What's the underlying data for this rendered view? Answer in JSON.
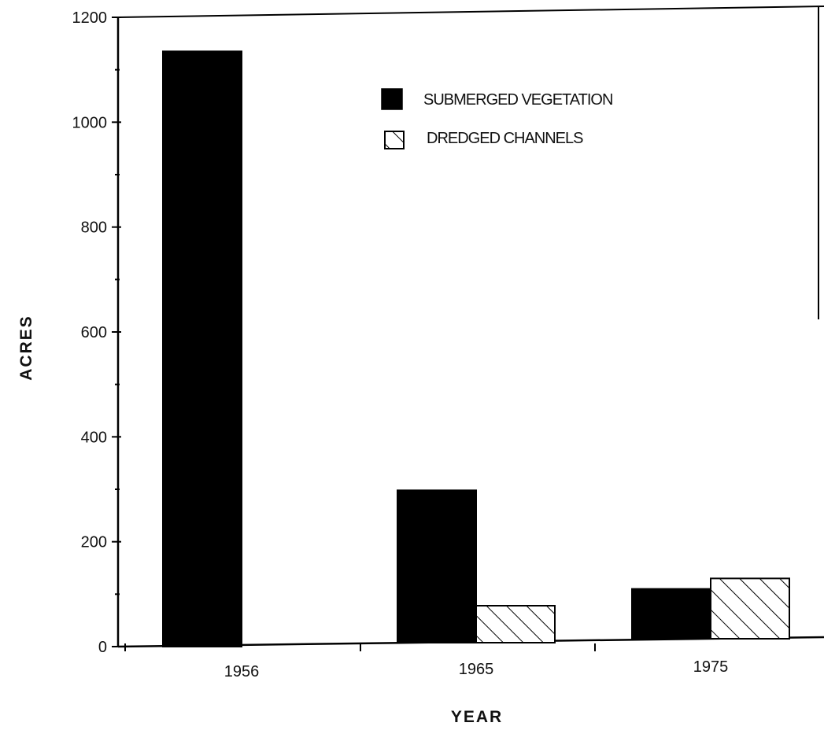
{
  "chart_data": {
    "type": "bar",
    "categories": [
      "1956",
      "1965",
      "1975"
    ],
    "series": [
      {
        "name": "SUBMERGED VEGETATION",
        "values": [
          1135,
          298,
          110
        ],
        "pattern": "solid",
        "color": "#000000"
      },
      {
        "name": "DREDGED CHANNELS",
        "values": [
          0,
          78,
          130
        ],
        "pattern": "hatched",
        "color": "#000000"
      }
    ],
    "title": "",
    "xlabel": "YEAR",
    "ylabel": "ACRES",
    "ylim": [
      0,
      1200
    ],
    "yticks": [
      0,
      200,
      400,
      600,
      800,
      1000,
      1200
    ],
    "yticks_labels": [
      "0",
      "200",
      "400",
      "600",
      "800",
      "1000",
      "1200"
    ],
    "grid": false,
    "legend_position": "top-right"
  }
}
